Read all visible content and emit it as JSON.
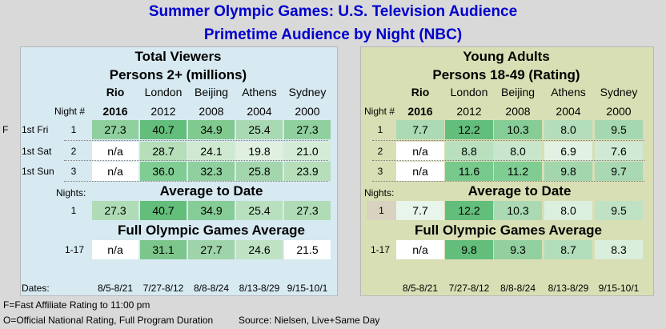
{
  "title": "Summer Olympic Games: U.S. Television Audience",
  "subtitle": "Primetime Audience by Night (NBC)",
  "footnotes": {
    "fast": "F=Fast Affiliate Rating to 11:00 pm",
    "official": "O=Official National Rating, Full Program Duration",
    "source": "Source: Nielsen, Live+Same Day"
  },
  "labels": {
    "night_header": "Night #",
    "nights_header": "Nights:",
    "average_to_date": "Average to Date",
    "full_games_average": "Full Olympic Games Average",
    "dates": "Dates:",
    "avg_nights": "1",
    "full_nights": "1-17"
  },
  "rows": [
    {
      "flag": "F",
      "label": "1st Fri",
      "night": "1"
    },
    {
      "flag": "",
      "label": "1st Sat",
      "night": "2"
    },
    {
      "flag": "",
      "label": "1st Sun",
      "night": "3"
    }
  ],
  "games": [
    {
      "host": "Rio",
      "year": "2016",
      "dates": "8/5-8/21",
      "bold": true
    },
    {
      "host": "London",
      "year": "2012",
      "dates": "7/27-8/12",
      "bold": false
    },
    {
      "host": "Beijing",
      "year": "2008",
      "dates": "8/8-8/24",
      "bold": false
    },
    {
      "host": "Athens",
      "year": "2004",
      "dates": "8/13-8/29",
      "bold": false
    },
    {
      "host": "Sydney",
      "year": "2000",
      "dates": "9/15-10/1",
      "bold": false
    }
  ],
  "chart_data": [
    {
      "type": "table",
      "title": "Total Viewers",
      "subtitle": "Persons 2+ (millions)",
      "columns": [
        "Rio 2016",
        "London 2012",
        "Beijing 2008",
        "Athens 2004",
        "Sydney 2000"
      ],
      "nightly": [
        [
          "27.3",
          "40.7",
          "34.9",
          "25.4",
          "27.3"
        ],
        [
          "n/a",
          "28.7",
          "24.1",
          "19.8",
          "21.0"
        ],
        [
          "n/a",
          "36.0",
          "32.3",
          "25.8",
          "23.9"
        ]
      ],
      "average_to_date": [
        "27.3",
        "40.7",
        "34.9",
        "25.4",
        "27.3"
      ],
      "full_games_average": [
        "n/a",
        "31.1",
        "27.7",
        "24.6",
        "21.5"
      ],
      "colors": {
        "nightly": [
          [
            "#8fd09e",
            "#63be7b",
            "#80c98f",
            "#a9d9b3",
            "#8fd09e"
          ],
          [
            "#ffffff",
            "#b5deb9",
            "#cfe9d1",
            "#dff0e1",
            "#d4ebd6"
          ],
          [
            "#ffffff",
            "#7fcd92",
            "#8fd09e",
            "#a3d6ad",
            "#b5deb9"
          ]
        ],
        "average_to_date": [
          "#afdcb6",
          "#63be7b",
          "#86cc96",
          "#b9e0be",
          "#afdcb6"
        ],
        "full_games_average": [
          "#ffffff",
          "#7cc68c",
          "#9fd4aa",
          "#bfe2c4",
          "#ffffff"
        ]
      }
    },
    {
      "type": "table",
      "title": "Young Adults",
      "subtitle": "Persons 18-49 (Rating)",
      "columns": [
        "Rio 2016",
        "London 2012",
        "Beijing 2008",
        "Athens 2004",
        "Sydney 2000"
      ],
      "nightly": [
        [
          "7.7",
          "12.2",
          "10.3",
          "8.0",
          "9.5"
        ],
        [
          "n/a",
          "8.8",
          "8.0",
          "6.9",
          "7.6"
        ],
        [
          "n/a",
          "11.6",
          "11.2",
          "9.8",
          "9.7"
        ]
      ],
      "average_to_date": [
        "7.7",
        "12.2",
        "10.3",
        "8.0",
        "9.5"
      ],
      "full_games_average": [
        "n/a",
        "9.8",
        "9.3",
        "8.7",
        "8.3"
      ],
      "colors": {
        "nightly": [
          [
            "#abdab5",
            "#63be7b",
            "#86cc96",
            "#b3ddbb",
            "#a5d8b0"
          ],
          [
            "#ffffff",
            "#b8e0bf",
            "#c7e6cc",
            "#e1f1e3",
            "#cfe9d4"
          ],
          [
            "#ffffff",
            "#78c98c",
            "#7fcd92",
            "#a3d6ad",
            "#a9d9b3"
          ]
        ],
        "average_to_date": [
          "#e8f5ea",
          "#63be7b",
          "#aad9b4",
          "#dbefdf",
          "#bfe2c4"
        ],
        "full_games_average": [
          "#ffffff",
          "#63be7b",
          "#93d09f",
          "#b2ddbb",
          "#d9efdc"
        ]
      }
    }
  ]
}
